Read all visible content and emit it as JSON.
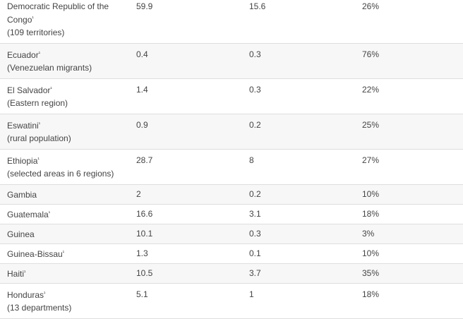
{
  "rows": [
    {
      "country": "Democratic Republic of the Congo",
      "note_mark": "¹",
      "detail": "(109 territories)",
      "col2": "59.9",
      "col3": "15.6",
      "col4": "26%"
    },
    {
      "country": "Ecuador",
      "note_mark": "¹",
      "detail": "(Venezuelan migrants)",
      "col2": "0.4",
      "col3": "0.3",
      "col4": "76%"
    },
    {
      "country": "El Salvador",
      "note_mark": "¹",
      "detail": "(Eastern region)",
      "col2": "1.4",
      "col3": "0.3",
      "col4": "22%"
    },
    {
      "country": "Eswatini",
      "note_mark": "¹",
      "detail": "(rural population)",
      "col2": "0.9",
      "col3": "0.2",
      "col4": "25%"
    },
    {
      "country": "Ethiopia",
      "note_mark": "¹",
      "detail": "(selected areas in 6 regions)",
      "col2": "28.7",
      "col3": "8",
      "col4": "27%"
    },
    {
      "country": "Gambia",
      "note_mark": "",
      "detail": "",
      "col2": "2",
      "col3": "0.2",
      "col4": "10%"
    },
    {
      "country": "Guatemala",
      "note_mark": "¹",
      "detail": "",
      "col2": "16.6",
      "col3": "3.1",
      "col4": "18%"
    },
    {
      "country": "Guinea",
      "note_mark": "",
      "detail": "",
      "col2": "10.1",
      "col3": "0.3",
      "col4": "3%"
    },
    {
      "country": "Guinea-Bissau",
      "note_mark": "¹",
      "detail": "",
      "col2": "1.3",
      "col3": "0.1",
      "col4": "10%"
    },
    {
      "country": "Haiti",
      "note_mark": "¹",
      "detail": "",
      "col2": "10.5",
      "col3": "3.7",
      "col4": "35%"
    },
    {
      "country": "Honduras",
      "note_mark": "¹",
      "detail": "(13 departments)",
      "col2": "5.1",
      "col3": "1",
      "col4": "18%"
    }
  ],
  "colors": {
    "row_alt_bg": "#f7f7f7",
    "text": "#444444",
    "border": "#dedede"
  }
}
